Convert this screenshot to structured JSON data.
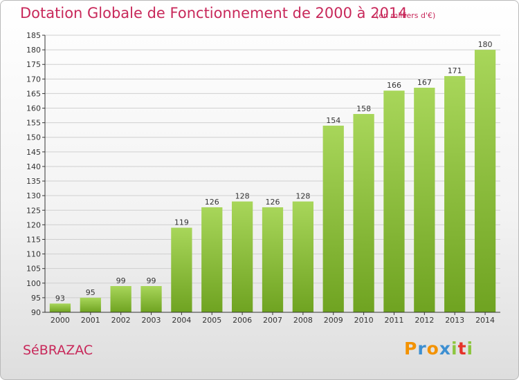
{
  "title": "Dotation Globale de Fonctionnement de 2000 à 2014",
  "subtitle": "(en milliers d'€)",
  "commune": "SéBRAZAC",
  "logo": {
    "letters": [
      "P",
      "r",
      "o",
      "x",
      "i",
      "t",
      "i"
    ],
    "colors": [
      "#f39200",
      "#3d8fd1",
      "#f39200",
      "#3d8fd1",
      "#8dc63f",
      "#e6332a",
      "#8dc63f"
    ]
  },
  "colors": {
    "bar_light": "#a8d65a",
    "bar_dark": "#6fa321",
    "grid": "#cfcfcf",
    "axis": "#333333",
    "accent": "#c8285a"
  },
  "chart_data": {
    "type": "bar",
    "categories": [
      "2000",
      "2001",
      "2002",
      "2003",
      "2004",
      "2005",
      "2006",
      "2007",
      "2008",
      "2009",
      "2010",
      "2011",
      "2012",
      "2013",
      "2014"
    ],
    "values": [
      93,
      95,
      99,
      99,
      119,
      126,
      128,
      126,
      128,
      154,
      158,
      166,
      167,
      171,
      180
    ],
    "ylim": [
      90,
      185
    ],
    "yticks": [
      90,
      95,
      100,
      105,
      110,
      115,
      120,
      125,
      130,
      135,
      140,
      145,
      150,
      155,
      160,
      165,
      170,
      175,
      180,
      185
    ],
    "grid": true,
    "data_labels": true
  }
}
